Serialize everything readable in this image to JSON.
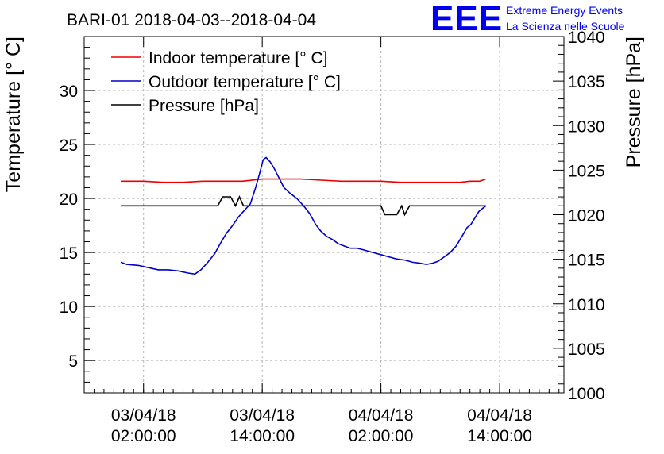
{
  "chart_data": {
    "type": "line",
    "title": "BARI-01 2018-04-03--2018-04-04",
    "logo": {
      "mark": "EEE",
      "line1": "Extreme Energy Events",
      "line2": "La Scienza nelle Scuole"
    },
    "ylabel_left": "Temperature [° C]",
    "ylabel_right": "Pressure [hPa]",
    "xlim_hours": [
      -4.0,
      44.5
    ],
    "ylim_left": [
      2,
      35
    ],
    "ylim_right": [
      1000,
      1040
    ],
    "x_ticks": [
      {
        "hour": 2,
        "line1": "03/04/18",
        "line2": "02:00:00"
      },
      {
        "hour": 14,
        "line1": "03/04/18",
        "line2": "14:00:00"
      },
      {
        "hour": 26,
        "line1": "04/04/18",
        "line2": "02:00:00"
      },
      {
        "hour": 38,
        "line1": "04/04/18",
        "line2": "14:00:00"
      }
    ],
    "y_ticks_left": [
      5,
      10,
      15,
      20,
      25,
      30
    ],
    "y_ticks_right": [
      1000,
      1005,
      1010,
      1015,
      1020,
      1025,
      1030,
      1035,
      1040
    ],
    "grid": true,
    "legend_position": "top-left",
    "series": [
      {
        "name": "Indoor temperature [° C]",
        "axis": "left",
        "color": "#ee0000",
        "points": [
          [
            -0.3,
            21.6
          ],
          [
            2,
            21.6
          ],
          [
            4,
            21.5
          ],
          [
            6,
            21.5
          ],
          [
            8,
            21.6
          ],
          [
            10,
            21.6
          ],
          [
            12,
            21.6
          ],
          [
            14,
            21.8
          ],
          [
            16,
            21.8
          ],
          [
            18,
            21.8
          ],
          [
            20,
            21.7
          ],
          [
            22,
            21.6
          ],
          [
            24,
            21.6
          ],
          [
            26,
            21.6
          ],
          [
            28,
            21.5
          ],
          [
            30,
            21.5
          ],
          [
            32,
            21.5
          ],
          [
            34,
            21.5
          ],
          [
            35,
            21.6
          ],
          [
            36,
            21.6
          ],
          [
            36.6,
            21.8
          ]
        ]
      },
      {
        "name": "Outdoor temperature [° C]",
        "axis": "left",
        "color": "#0000cc",
        "points": [
          [
            -0.3,
            14.1
          ],
          [
            0.3,
            13.9
          ],
          [
            1.5,
            13.8
          ],
          [
            2.5,
            13.6
          ],
          [
            3.5,
            13.4
          ],
          [
            4.5,
            13.4
          ],
          [
            5.5,
            13.3
          ],
          [
            6.5,
            13.1
          ],
          [
            7.2,
            13.0
          ],
          [
            7.8,
            13.4
          ],
          [
            8.5,
            14.1
          ],
          [
            9.2,
            14.9
          ],
          [
            9.8,
            15.9
          ],
          [
            10.4,
            16.8
          ],
          [
            11,
            17.5
          ],
          [
            11.6,
            18.3
          ],
          [
            12.2,
            18.9
          ],
          [
            12.8,
            19.5
          ],
          [
            13.3,
            20.9
          ],
          [
            13.7,
            22.2
          ],
          [
            14.1,
            23.6
          ],
          [
            14.4,
            23.8
          ],
          [
            14.8,
            23.4
          ],
          [
            15.2,
            22.8
          ],
          [
            15.7,
            21.9
          ],
          [
            16.2,
            21.0
          ],
          [
            16.8,
            20.5
          ],
          [
            17.5,
            20.0
          ],
          [
            18.2,
            19.3
          ],
          [
            18.8,
            18.6
          ],
          [
            19.4,
            17.6
          ],
          [
            19.9,
            17.0
          ],
          [
            20.5,
            16.5
          ],
          [
            21.1,
            16.2
          ],
          [
            21.7,
            15.8
          ],
          [
            22.3,
            15.6
          ],
          [
            22.9,
            15.4
          ],
          [
            23.6,
            15.4
          ],
          [
            24.4,
            15.2
          ],
          [
            25.2,
            15.0
          ],
          [
            26.0,
            14.8
          ],
          [
            26.8,
            14.6
          ],
          [
            27.6,
            14.4
          ],
          [
            28.4,
            14.3
          ],
          [
            29.2,
            14.1
          ],
          [
            30.0,
            14.0
          ],
          [
            30.6,
            13.9
          ],
          [
            31.2,
            14.0
          ],
          [
            31.8,
            14.2
          ],
          [
            32.4,
            14.6
          ],
          [
            33.0,
            15.0
          ],
          [
            33.6,
            15.6
          ],
          [
            34.2,
            16.5
          ],
          [
            34.7,
            17.3
          ],
          [
            35.1,
            17.6
          ],
          [
            35.5,
            18.2
          ],
          [
            35.9,
            18.8
          ],
          [
            36.3,
            19.1
          ],
          [
            36.6,
            19.3
          ]
        ]
      },
      {
        "name": "Pressure [hPa]",
        "axis": "right",
        "color": "#000000",
        "points": [
          [
            -0.3,
            1021
          ],
          [
            9.5,
            1021
          ],
          [
            10.0,
            1022
          ],
          [
            10.8,
            1022
          ],
          [
            11.3,
            1021
          ],
          [
            11.7,
            1022
          ],
          [
            12.1,
            1021
          ],
          [
            26.0,
            1021
          ],
          [
            26.4,
            1020
          ],
          [
            27.6,
            1020
          ],
          [
            28.1,
            1021
          ],
          [
            28.4,
            1020
          ],
          [
            28.9,
            1021
          ],
          [
            36.6,
            1021
          ]
        ]
      }
    ]
  }
}
